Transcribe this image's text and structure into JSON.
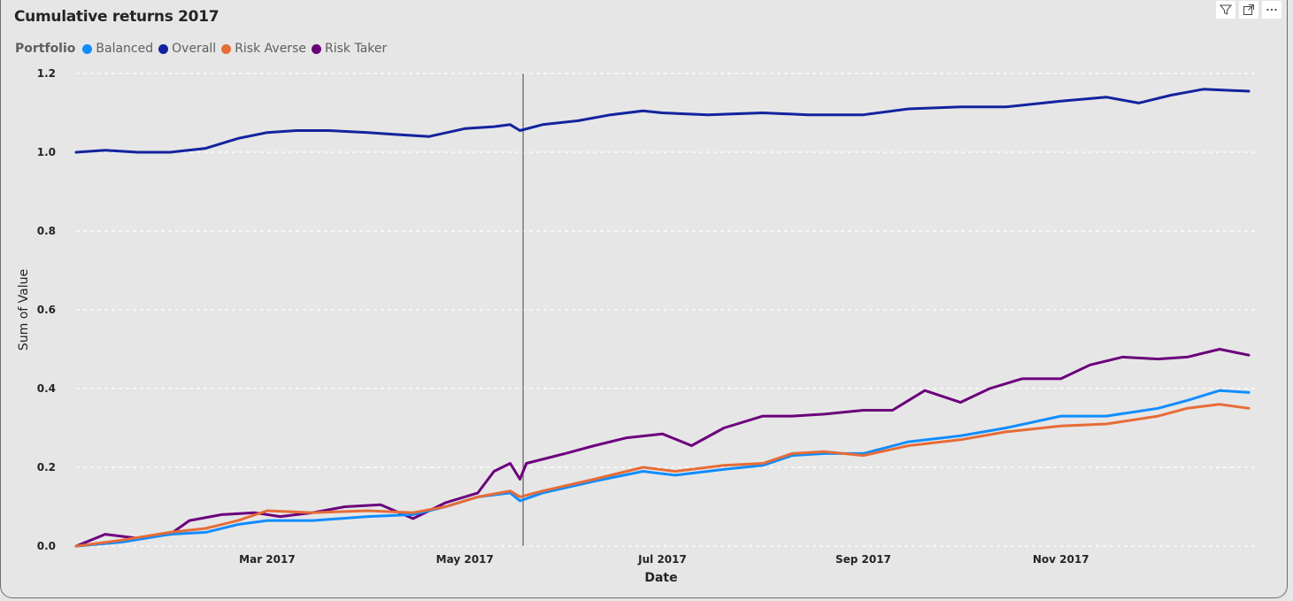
{
  "header": {
    "title": "Cumulative returns 2017",
    "icons": [
      "filter-icon",
      "focus-mode-icon",
      "more-options-icon"
    ]
  },
  "legend": {
    "title": "Portfolio",
    "items": [
      {
        "label": "Balanced",
        "color": "#118DFF"
      },
      {
        "label": "Overall",
        "color": "#12239E"
      },
      {
        "label": "Risk Averse",
        "color": "#E66C37"
      },
      {
        "label": "Risk Taker",
        "color": "#6B007B"
      }
    ]
  },
  "chart_data": {
    "type": "line",
    "title": "Cumulative returns 2017",
    "xlabel": "Date",
    "ylabel": "Sum of Value",
    "xlim": [
      "2017-01-01",
      "2017-12-29"
    ],
    "ylim": [
      0,
      1.2
    ],
    "yticks": [
      0.0,
      0.2,
      0.4,
      0.6,
      0.8,
      1.0,
      1.2
    ],
    "ytick_labels": [
      "0.0",
      "0.2",
      "0.4",
      "0.6",
      "0.8",
      "1.0",
      "1.2"
    ],
    "xticks": [
      "2017-03-01",
      "2017-05-01",
      "2017-07-01",
      "2017-09-01",
      "2017-11-01"
    ],
    "xtick_labels": [
      "Mar 2017",
      "May 2017",
      "Jul 2017",
      "Sep 2017",
      "Nov 2017"
    ],
    "grid": true,
    "legend_position": "top-left",
    "reference_line": {
      "date": "2017-05-19"
    },
    "series": [
      {
        "name": "Overall",
        "color": "#12239E",
        "x": [
          "2017-01-01",
          "2017-01-10",
          "2017-01-20",
          "2017-01-30",
          "2017-02-10",
          "2017-02-20",
          "2017-03-01",
          "2017-03-10",
          "2017-03-20",
          "2017-04-01",
          "2017-04-10",
          "2017-04-20",
          "2017-05-01",
          "2017-05-10",
          "2017-05-15",
          "2017-05-18",
          "2017-05-25",
          "2017-06-05",
          "2017-06-15",
          "2017-06-25",
          "2017-07-01",
          "2017-07-15",
          "2017-08-01",
          "2017-08-15",
          "2017-09-01",
          "2017-09-15",
          "2017-10-01",
          "2017-10-15",
          "2017-11-01",
          "2017-11-15",
          "2017-11-25",
          "2017-12-05",
          "2017-12-15",
          "2017-12-29"
        ],
        "values": [
          1.0,
          1.005,
          1.0,
          1.0,
          1.01,
          1.035,
          1.05,
          1.055,
          1.055,
          1.05,
          1.045,
          1.04,
          1.06,
          1.065,
          1.07,
          1.055,
          1.07,
          1.08,
          1.095,
          1.105,
          1.1,
          1.095,
          1.1,
          1.095,
          1.095,
          1.11,
          1.115,
          1.115,
          1.13,
          1.14,
          1.125,
          1.145,
          1.16,
          1.155
        ]
      },
      {
        "name": "Risk Taker",
        "color": "#6B007B",
        "x": [
          "2017-01-01",
          "2017-01-10",
          "2017-01-20",
          "2017-01-30",
          "2017-02-05",
          "2017-02-15",
          "2017-02-25",
          "2017-03-05",
          "2017-03-15",
          "2017-03-25",
          "2017-04-05",
          "2017-04-15",
          "2017-04-25",
          "2017-05-05",
          "2017-05-10",
          "2017-05-15",
          "2017-05-18",
          "2017-05-20",
          "2017-06-01",
          "2017-06-10",
          "2017-06-20",
          "2017-07-01",
          "2017-07-10",
          "2017-07-20",
          "2017-08-01",
          "2017-08-10",
          "2017-08-20",
          "2017-09-01",
          "2017-09-10",
          "2017-09-20",
          "2017-10-01",
          "2017-10-10",
          "2017-10-20",
          "2017-11-01",
          "2017-11-10",
          "2017-11-20",
          "2017-12-01",
          "2017-12-10",
          "2017-12-20",
          "2017-12-29"
        ],
        "values": [
          0.0,
          0.03,
          0.02,
          0.03,
          0.065,
          0.08,
          0.085,
          0.075,
          0.085,
          0.1,
          0.105,
          0.07,
          0.11,
          0.135,
          0.19,
          0.21,
          0.17,
          0.21,
          0.235,
          0.255,
          0.275,
          0.285,
          0.255,
          0.3,
          0.33,
          0.33,
          0.335,
          0.345,
          0.345,
          0.395,
          0.365,
          0.4,
          0.425,
          0.425,
          0.46,
          0.48,
          0.475,
          0.48,
          0.5,
          0.485
        ]
      },
      {
        "name": "Balanced",
        "color": "#118DFF",
        "x": [
          "2017-01-01",
          "2017-01-15",
          "2017-01-30",
          "2017-02-10",
          "2017-02-20",
          "2017-03-01",
          "2017-03-15",
          "2017-04-01",
          "2017-04-15",
          "2017-04-25",
          "2017-05-05",
          "2017-05-15",
          "2017-05-18",
          "2017-05-25",
          "2017-06-10",
          "2017-06-25",
          "2017-07-05",
          "2017-07-20",
          "2017-08-01",
          "2017-08-10",
          "2017-08-20",
          "2017-09-01",
          "2017-09-15",
          "2017-10-01",
          "2017-10-15",
          "2017-11-01",
          "2017-11-15",
          "2017-12-01",
          "2017-12-10",
          "2017-12-20",
          "2017-12-29"
        ],
        "values": [
          0.0,
          0.01,
          0.03,
          0.035,
          0.055,
          0.065,
          0.065,
          0.075,
          0.08,
          0.1,
          0.125,
          0.135,
          0.115,
          0.135,
          0.165,
          0.19,
          0.18,
          0.195,
          0.205,
          0.23,
          0.235,
          0.235,
          0.265,
          0.28,
          0.3,
          0.33,
          0.33,
          0.35,
          0.37,
          0.395,
          0.39
        ]
      },
      {
        "name": "Risk Averse",
        "color": "#E66C37",
        "x": [
          "2017-01-01",
          "2017-01-15",
          "2017-01-30",
          "2017-02-10",
          "2017-02-20",
          "2017-03-01",
          "2017-03-15",
          "2017-04-01",
          "2017-04-15",
          "2017-04-25",
          "2017-05-05",
          "2017-05-15",
          "2017-05-18",
          "2017-05-25",
          "2017-06-10",
          "2017-06-25",
          "2017-07-05",
          "2017-07-20",
          "2017-08-01",
          "2017-08-10",
          "2017-08-20",
          "2017-09-01",
          "2017-09-15",
          "2017-10-01",
          "2017-10-15",
          "2017-11-01",
          "2017-11-15",
          "2017-12-01",
          "2017-12-10",
          "2017-12-20",
          "2017-12-29"
        ],
        "values": [
          0.0,
          0.015,
          0.035,
          0.045,
          0.065,
          0.09,
          0.085,
          0.09,
          0.085,
          0.1,
          0.125,
          0.14,
          0.125,
          0.14,
          0.17,
          0.2,
          0.19,
          0.205,
          0.21,
          0.235,
          0.24,
          0.23,
          0.255,
          0.27,
          0.29,
          0.305,
          0.31,
          0.33,
          0.35,
          0.36,
          0.35
        ]
      }
    ]
  }
}
